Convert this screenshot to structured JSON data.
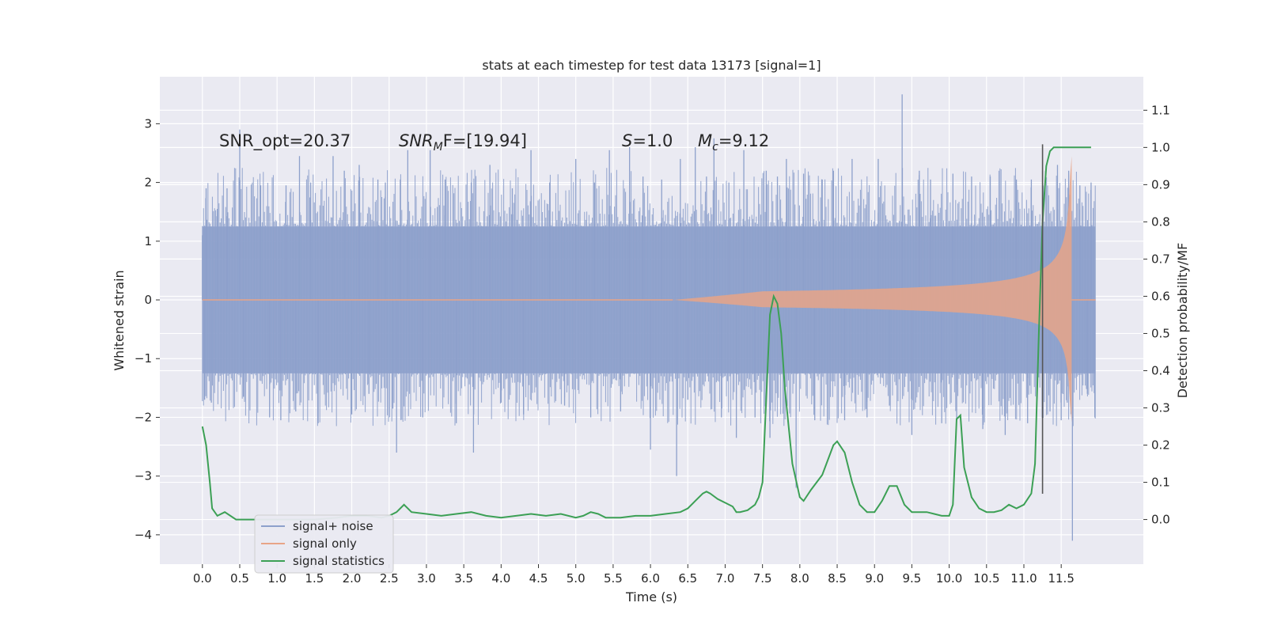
{
  "chart_data": {
    "type": "line",
    "title": "stats at each timestep for test data 13173 [signal=1]",
    "xlabel": "Time (s)",
    "ylabel": "Whitened strain",
    "y2label": "Detection probability/MF",
    "xlim": [
      -0.57,
      12.6
    ],
    "ylim": [
      -4.5,
      3.8
    ],
    "y2lim": [
      -0.12,
      1.19
    ],
    "x_ticks": [
      0.0,
      0.5,
      1.0,
      1.5,
      2.0,
      2.5,
      3.0,
      3.5,
      4.0,
      4.5,
      5.0,
      5.5,
      6.0,
      6.5,
      7.0,
      7.5,
      8.0,
      8.5,
      9.0,
      9.5,
      10.0,
      10.5,
      11.0,
      11.5
    ],
    "x_tick_labels": [
      "0.0",
      "0.5",
      "1.0",
      "1.5",
      "2.0",
      "2.5",
      "3.0",
      "3.5",
      "4.0",
      "4.5",
      "5.0",
      "5.5",
      "6.0",
      "6.5",
      "7.0",
      "7.5",
      "8.0",
      "8.5",
      "9.0",
      "9.5",
      "10.0",
      "10.5",
      "11.0",
      "11.5"
    ],
    "y_ticks": [
      -4,
      -3,
      -2,
      -1,
      0,
      1,
      2,
      3
    ],
    "y_tick_labels": [
      "−4",
      "−3",
      "−2",
      "−1",
      "0",
      "1",
      "2",
      "3"
    ],
    "y2_ticks": [
      0.0,
      0.1,
      0.2,
      0.3,
      0.4,
      0.5,
      0.6,
      0.7,
      0.8,
      0.9,
      1.0,
      1.1
    ],
    "y2_tick_labels": [
      "0.0",
      "0.1",
      "0.2",
      "0.3",
      "0.4",
      "0.5",
      "0.6",
      "0.7",
      "0.8",
      "0.9",
      "1.0",
      "1.1"
    ],
    "grid": true,
    "legend_position": "lower-left",
    "annotations": {
      "snr_opt": "SNR_opt=20.37",
      "snr_mf_base": "SNR",
      "snr_mf_sub": "M",
      "snr_mf_rest": "F=[19.94]",
      "s_sym": "S",
      "s_rest": "=1.0",
      "mc_sym": "M",
      "mc_sub": "c",
      "mc_rest": "=9.12"
    },
    "vline": {
      "x": 11.25,
      "y_range": [
        -3.3,
        2.65
      ]
    },
    "noise_band": {
      "x_range": [
        0.0,
        11.96
      ],
      "dense_bottom": -1.25,
      "dense_top": 1.25,
      "spike_max": 3.5,
      "spike_min": -4.1
    },
    "series": [
      {
        "name": "signal+ noise",
        "color": "#8da0cb",
        "style": "noise",
        "spikes": [
          [
            0.0,
            1.1
          ],
          [
            0.03,
            -1.7
          ],
          [
            0.05,
            1.9
          ],
          [
            0.12,
            -1.75
          ],
          [
            0.2,
            1.55
          ],
          [
            0.33,
            1.9
          ],
          [
            0.5,
            2.9
          ],
          [
            0.55,
            -1.65
          ],
          [
            0.78,
            1.95
          ],
          [
            0.9,
            -2.0
          ],
          [
            1.05,
            -2.05
          ],
          [
            1.12,
            1.95
          ],
          [
            1.25,
            -1.9
          ],
          [
            1.3,
            2.45
          ],
          [
            1.45,
            2.0
          ],
          [
            1.55,
            -2.1
          ],
          [
            1.75,
            2.45
          ],
          [
            1.9,
            2.2
          ],
          [
            2.0,
            -1.95
          ],
          [
            2.1,
            2.3
          ],
          [
            2.23,
            -1.6
          ],
          [
            2.35,
            2.05
          ],
          [
            2.45,
            2.0
          ],
          [
            2.55,
            -1.85
          ],
          [
            2.6,
            -2.6
          ],
          [
            2.65,
            2.05
          ],
          [
            2.75,
            2.55
          ],
          [
            2.95,
            -2.0
          ],
          [
            3.05,
            2.55
          ],
          [
            3.25,
            2.05
          ],
          [
            3.4,
            -2.1
          ],
          [
            3.6,
            2.0
          ],
          [
            3.63,
            -2.6
          ],
          [
            3.85,
            2.3
          ],
          [
            4.0,
            -1.75
          ],
          [
            4.15,
            1.9
          ],
          [
            4.3,
            -1.95
          ],
          [
            4.4,
            2.55
          ],
          [
            4.65,
            2.0
          ],
          [
            4.85,
            -1.8
          ],
          [
            5.0,
            2.4
          ],
          [
            5.2,
            -2.0
          ],
          [
            5.25,
            2.0
          ],
          [
            5.45,
            2.55
          ],
          [
            5.6,
            -1.9
          ],
          [
            5.72,
            2.6
          ],
          [
            5.9,
            2.1
          ],
          [
            6.0,
            -2.55
          ],
          [
            6.15,
            2.05
          ],
          [
            6.35,
            -3.0
          ],
          [
            6.4,
            2.4
          ],
          [
            6.5,
            -1.7
          ],
          [
            6.6,
            2.6
          ],
          [
            6.75,
            2.1
          ],
          [
            6.85,
            2.75
          ],
          [
            6.95,
            -2.0
          ],
          [
            7.05,
            2.0
          ],
          [
            7.15,
            -2.35
          ],
          [
            7.25,
            2.55
          ],
          [
            7.4,
            -2.0
          ],
          [
            7.55,
            2.2
          ],
          [
            7.6,
            -2.35
          ],
          [
            7.7,
            2.1
          ],
          [
            7.82,
            2.4
          ],
          [
            7.95,
            -3.2
          ],
          [
            8.05,
            2.15
          ],
          [
            8.2,
            -2.05
          ],
          [
            8.3,
            2.05
          ],
          [
            8.45,
            2.2
          ],
          [
            8.6,
            -2.05
          ],
          [
            8.7,
            2.4
          ],
          [
            8.9,
            -2.0
          ],
          [
            9.05,
            2.4
          ],
          [
            9.2,
            -1.8
          ],
          [
            9.37,
            3.5
          ],
          [
            9.5,
            -2.3
          ],
          [
            9.6,
            2.2
          ],
          [
            9.75,
            2.05
          ],
          [
            9.9,
            -2.1
          ],
          [
            10.05,
            2.15
          ],
          [
            10.1,
            -2.05
          ],
          [
            10.3,
            2.1
          ],
          [
            10.45,
            -2.2
          ],
          [
            10.55,
            2.1
          ],
          [
            10.75,
            -2.3
          ],
          [
            10.9,
            2.05
          ],
          [
            11.05,
            -2.1
          ],
          [
            11.1,
            2.05
          ],
          [
            11.25,
            2.2
          ],
          [
            11.35,
            -1.9
          ],
          [
            11.45,
            2.3
          ],
          [
            11.5,
            -2.05
          ],
          [
            11.58,
            -1.75
          ],
          [
            11.6,
            2.2
          ],
          [
            11.65,
            -4.1
          ],
          [
            11.75,
            1.95
          ],
          [
            11.85,
            -1.6
          ],
          [
            11.9,
            2.0
          ],
          [
            11.95,
            -2.0
          ]
        ]
      },
      {
        "name": "signal only",
        "color": "#e8a487",
        "style": "chirp",
        "x_start": 6.3,
        "x_peak": 11.64,
        "peak_amp": 2.45,
        "x_end": 11.96
      },
      {
        "name": "signal statistics",
        "color": "#3ca055",
        "style": "line",
        "axis": "right",
        "x": [
          0.0,
          0.05,
          0.1,
          0.13,
          0.2,
          0.3,
          0.45,
          0.6,
          0.8,
          1.0,
          1.2,
          1.5,
          1.8,
          2.0,
          2.2,
          2.4,
          2.5,
          2.6,
          2.7,
          2.8,
          3.0,
          3.2,
          3.4,
          3.6,
          3.8,
          4.0,
          4.2,
          4.4,
          4.6,
          4.8,
          5.0,
          5.1,
          5.2,
          5.3,
          5.4,
          5.6,
          5.8,
          6.0,
          6.2,
          6.4,
          6.5,
          6.6,
          6.7,
          6.75,
          6.8,
          6.9,
          7.0,
          7.1,
          7.15,
          7.2,
          7.3,
          7.4,
          7.45,
          7.5,
          7.6,
          7.65,
          7.7,
          7.75,
          7.8,
          7.9,
          8.0,
          8.05,
          8.15,
          8.3,
          8.45,
          8.5,
          8.6,
          8.7,
          8.8,
          8.9,
          9.0,
          9.1,
          9.2,
          9.3,
          9.4,
          9.5,
          9.7,
          9.8,
          9.9,
          10.0,
          10.05,
          10.1,
          10.15,
          10.2,
          10.3,
          10.4,
          10.5,
          10.6,
          10.7,
          10.8,
          10.9,
          11.0,
          11.1,
          11.15,
          11.2,
          11.25,
          11.3,
          11.35,
          11.4,
          11.45,
          11.55,
          11.7,
          11.9
        ],
        "y": [
          0.25,
          0.2,
          0.1,
          0.03,
          0.01,
          0.02,
          0.0,
          0.0,
          0.0,
          0.0,
          0.0,
          0.0,
          0.005,
          0.01,
          0.01,
          0.005,
          0.01,
          0.02,
          0.04,
          0.02,
          0.015,
          0.01,
          0.015,
          0.02,
          0.01,
          0.005,
          0.01,
          0.015,
          0.01,
          0.015,
          0.005,
          0.01,
          0.02,
          0.015,
          0.005,
          0.005,
          0.01,
          0.01,
          0.015,
          0.02,
          0.03,
          0.05,
          0.07,
          0.075,
          0.07,
          0.055,
          0.045,
          0.035,
          0.02,
          0.02,
          0.025,
          0.04,
          0.06,
          0.1,
          0.55,
          0.6,
          0.58,
          0.5,
          0.35,
          0.15,
          0.06,
          0.05,
          0.08,
          0.12,
          0.2,
          0.21,
          0.18,
          0.1,
          0.04,
          0.02,
          0.02,
          0.05,
          0.09,
          0.09,
          0.04,
          0.02,
          0.02,
          0.015,
          0.01,
          0.01,
          0.04,
          0.27,
          0.28,
          0.14,
          0.06,
          0.03,
          0.02,
          0.02,
          0.025,
          0.04,
          0.03,
          0.04,
          0.07,
          0.15,
          0.5,
          0.8,
          0.95,
          0.99,
          1.0,
          1.0,
          1.0,
          1.0,
          1.0
        ]
      }
    ]
  }
}
